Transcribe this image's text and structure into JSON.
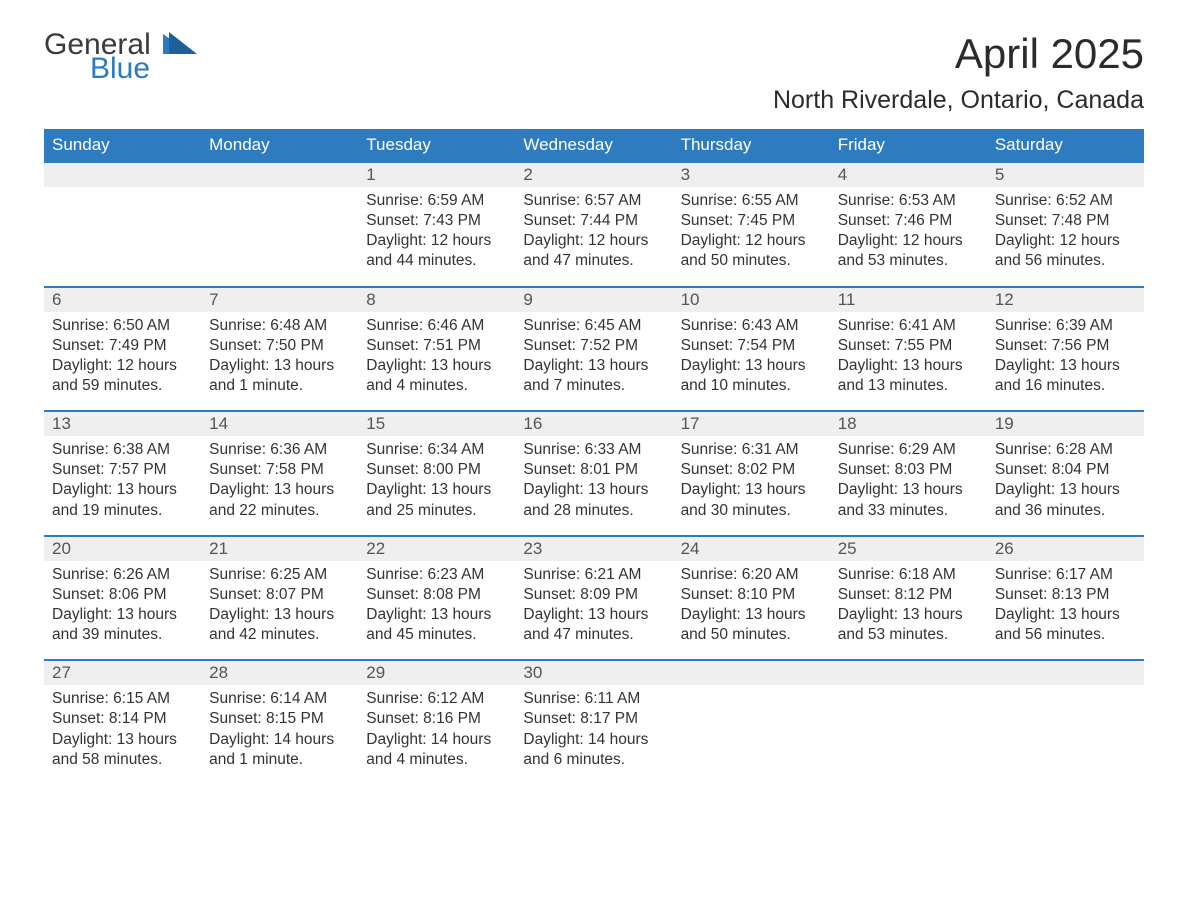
{
  "brand": {
    "part1": "General",
    "part2": "Blue"
  },
  "title": "April 2025",
  "location": "North Riverdale, Ontario, Canada",
  "colors": {
    "header_bg": "#2f7bbf",
    "header_text": "#ffffff",
    "daynum_bg": "#efefef",
    "text": "#333333",
    "brand_blue": "#2b7bbf"
  },
  "day_labels": [
    "Sunday",
    "Monday",
    "Tuesday",
    "Wednesday",
    "Thursday",
    "Friday",
    "Saturday"
  ],
  "weeks": [
    [
      {
        "n": "",
        "sunrise": "",
        "sunset": "",
        "daylight": ""
      },
      {
        "n": "",
        "sunrise": "",
        "sunset": "",
        "daylight": ""
      },
      {
        "n": "1",
        "sunrise": "Sunrise: 6:59 AM",
        "sunset": "Sunset: 7:43 PM",
        "daylight": "Daylight: 12 hours and 44 minutes."
      },
      {
        "n": "2",
        "sunrise": "Sunrise: 6:57 AM",
        "sunset": "Sunset: 7:44 PM",
        "daylight": "Daylight: 12 hours and 47 minutes."
      },
      {
        "n": "3",
        "sunrise": "Sunrise: 6:55 AM",
        "sunset": "Sunset: 7:45 PM",
        "daylight": "Daylight: 12 hours and 50 minutes."
      },
      {
        "n": "4",
        "sunrise": "Sunrise: 6:53 AM",
        "sunset": "Sunset: 7:46 PM",
        "daylight": "Daylight: 12 hours and 53 minutes."
      },
      {
        "n": "5",
        "sunrise": "Sunrise: 6:52 AM",
        "sunset": "Sunset: 7:48 PM",
        "daylight": "Daylight: 12 hours and 56 minutes."
      }
    ],
    [
      {
        "n": "6",
        "sunrise": "Sunrise: 6:50 AM",
        "sunset": "Sunset: 7:49 PM",
        "daylight": "Daylight: 12 hours and 59 minutes."
      },
      {
        "n": "7",
        "sunrise": "Sunrise: 6:48 AM",
        "sunset": "Sunset: 7:50 PM",
        "daylight": "Daylight: 13 hours and 1 minute."
      },
      {
        "n": "8",
        "sunrise": "Sunrise: 6:46 AM",
        "sunset": "Sunset: 7:51 PM",
        "daylight": "Daylight: 13 hours and 4 minutes."
      },
      {
        "n": "9",
        "sunrise": "Sunrise: 6:45 AM",
        "sunset": "Sunset: 7:52 PM",
        "daylight": "Daylight: 13 hours and 7 minutes."
      },
      {
        "n": "10",
        "sunrise": "Sunrise: 6:43 AM",
        "sunset": "Sunset: 7:54 PM",
        "daylight": "Daylight: 13 hours and 10 minutes."
      },
      {
        "n": "11",
        "sunrise": "Sunrise: 6:41 AM",
        "sunset": "Sunset: 7:55 PM",
        "daylight": "Daylight: 13 hours and 13 minutes."
      },
      {
        "n": "12",
        "sunrise": "Sunrise: 6:39 AM",
        "sunset": "Sunset: 7:56 PM",
        "daylight": "Daylight: 13 hours and 16 minutes."
      }
    ],
    [
      {
        "n": "13",
        "sunrise": "Sunrise: 6:38 AM",
        "sunset": "Sunset: 7:57 PM",
        "daylight": "Daylight: 13 hours and 19 minutes."
      },
      {
        "n": "14",
        "sunrise": "Sunrise: 6:36 AM",
        "sunset": "Sunset: 7:58 PM",
        "daylight": "Daylight: 13 hours and 22 minutes."
      },
      {
        "n": "15",
        "sunrise": "Sunrise: 6:34 AM",
        "sunset": "Sunset: 8:00 PM",
        "daylight": "Daylight: 13 hours and 25 minutes."
      },
      {
        "n": "16",
        "sunrise": "Sunrise: 6:33 AM",
        "sunset": "Sunset: 8:01 PM",
        "daylight": "Daylight: 13 hours and 28 minutes."
      },
      {
        "n": "17",
        "sunrise": "Sunrise: 6:31 AM",
        "sunset": "Sunset: 8:02 PM",
        "daylight": "Daylight: 13 hours and 30 minutes."
      },
      {
        "n": "18",
        "sunrise": "Sunrise: 6:29 AM",
        "sunset": "Sunset: 8:03 PM",
        "daylight": "Daylight: 13 hours and 33 minutes."
      },
      {
        "n": "19",
        "sunrise": "Sunrise: 6:28 AM",
        "sunset": "Sunset: 8:04 PM",
        "daylight": "Daylight: 13 hours and 36 minutes."
      }
    ],
    [
      {
        "n": "20",
        "sunrise": "Sunrise: 6:26 AM",
        "sunset": "Sunset: 8:06 PM",
        "daylight": "Daylight: 13 hours and 39 minutes."
      },
      {
        "n": "21",
        "sunrise": "Sunrise: 6:25 AM",
        "sunset": "Sunset: 8:07 PM",
        "daylight": "Daylight: 13 hours and 42 minutes."
      },
      {
        "n": "22",
        "sunrise": "Sunrise: 6:23 AM",
        "sunset": "Sunset: 8:08 PM",
        "daylight": "Daylight: 13 hours and 45 minutes."
      },
      {
        "n": "23",
        "sunrise": "Sunrise: 6:21 AM",
        "sunset": "Sunset: 8:09 PM",
        "daylight": "Daylight: 13 hours and 47 minutes."
      },
      {
        "n": "24",
        "sunrise": "Sunrise: 6:20 AM",
        "sunset": "Sunset: 8:10 PM",
        "daylight": "Daylight: 13 hours and 50 minutes."
      },
      {
        "n": "25",
        "sunrise": "Sunrise: 6:18 AM",
        "sunset": "Sunset: 8:12 PM",
        "daylight": "Daylight: 13 hours and 53 minutes."
      },
      {
        "n": "26",
        "sunrise": "Sunrise: 6:17 AM",
        "sunset": "Sunset: 8:13 PM",
        "daylight": "Daylight: 13 hours and 56 minutes."
      }
    ],
    [
      {
        "n": "27",
        "sunrise": "Sunrise: 6:15 AM",
        "sunset": "Sunset: 8:14 PM",
        "daylight": "Daylight: 13 hours and 58 minutes."
      },
      {
        "n": "28",
        "sunrise": "Sunrise: 6:14 AM",
        "sunset": "Sunset: 8:15 PM",
        "daylight": "Daylight: 14 hours and 1 minute."
      },
      {
        "n": "29",
        "sunrise": "Sunrise: 6:12 AM",
        "sunset": "Sunset: 8:16 PM",
        "daylight": "Daylight: 14 hours and 4 minutes."
      },
      {
        "n": "30",
        "sunrise": "Sunrise: 6:11 AM",
        "sunset": "Sunset: 8:17 PM",
        "daylight": "Daylight: 14 hours and 6 minutes."
      },
      {
        "n": "",
        "sunrise": "",
        "sunset": "",
        "daylight": ""
      },
      {
        "n": "",
        "sunrise": "",
        "sunset": "",
        "daylight": ""
      },
      {
        "n": "",
        "sunrise": "",
        "sunset": "",
        "daylight": ""
      }
    ]
  ]
}
